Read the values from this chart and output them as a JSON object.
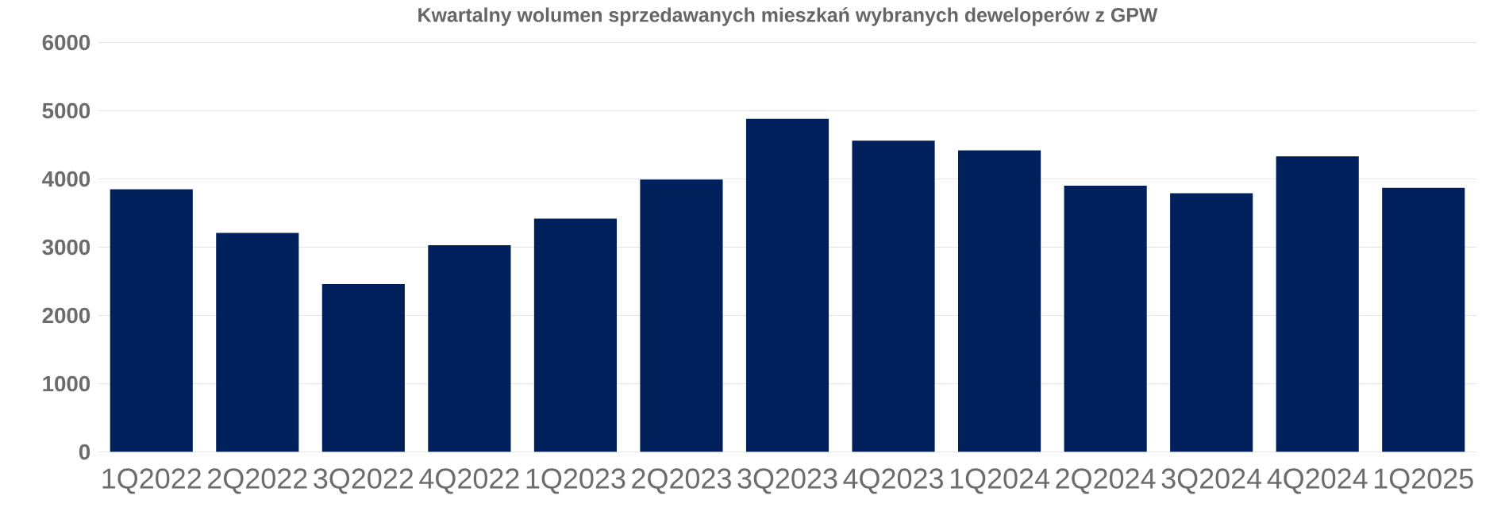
{
  "chart_data": {
    "type": "bar",
    "title": "Kwartalny wolumen sprzedawanych mieszkań wybranych deweloperów z GPW",
    "categories": [
      "1Q2022",
      "2Q2022",
      "3Q2022",
      "4Q2022",
      "1Q2023",
      "2Q2023",
      "3Q2023",
      "4Q2023",
      "1Q2024",
      "2Q2024",
      "3Q2024",
      "4Q2024",
      "1Q2025"
    ],
    "values": [
      3850,
      3210,
      2460,
      3030,
      3420,
      3990,
      4880,
      4560,
      4420,
      3900,
      3790,
      4330,
      3870
    ],
    "color": "#00205b",
    "ylim": [
      0,
      6000
    ],
    "yticks": [
      0,
      1000,
      2000,
      3000,
      4000,
      5000,
      6000
    ],
    "grid": "y"
  }
}
